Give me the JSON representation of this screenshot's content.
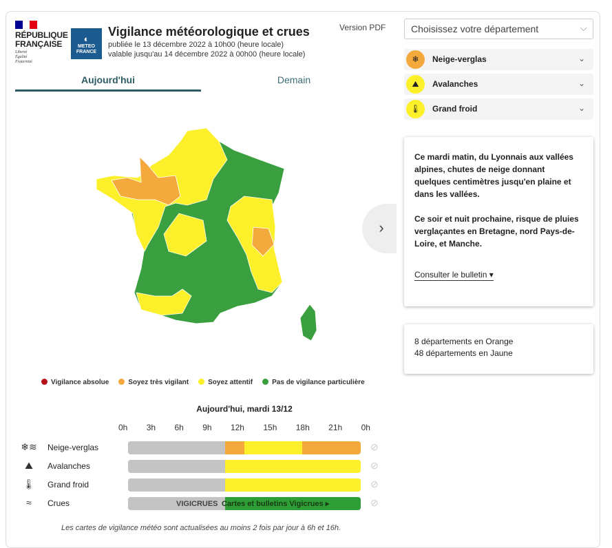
{
  "header": {
    "brand_lines": [
      "RÉPUBLIQUE",
      "FRANÇAISE"
    ],
    "motto": [
      "Liberté",
      "Égalité",
      "Fraternité"
    ],
    "logo_text": [
      "METEO",
      "FRANCE"
    ],
    "title": "Vigilance météorologique et crues",
    "published": "publiée le 13 décembre 2022 à 10h00 (heure locale)",
    "valid": "valable jusqu'au 14 décembre 2022 à 00h00 (heure locale)",
    "pdf": "Version PDF"
  },
  "tabs": [
    {
      "label": "Aujourd'hui",
      "active": true
    },
    {
      "label": "Demain",
      "active": false
    }
  ],
  "map": {
    "next_icon": "chevron-right-icon"
  },
  "legend": [
    {
      "label": "Vigilance absolue",
      "color": "#c8102e"
    },
    {
      "label": "Soyez très vigilant",
      "color": "#f4a93c"
    },
    {
      "label": "Soyez attentif",
      "color": "#fbf02a"
    },
    {
      "label": "Pas de vigilance particulière",
      "color": "#3aa03f"
    }
  ],
  "timeline": {
    "title": "Aujourd'hui, mardi 13/12",
    "hours": [
      "0h",
      "3h",
      "6h",
      "9h",
      "12h",
      "15h",
      "18h",
      "21h",
      "0h"
    ],
    "rows": [
      {
        "label": "Neige-verglas",
        "icon": "snow-ice-icon",
        "segments": [
          {
            "from": 0,
            "to": 10,
            "color": "#c4c4c4"
          },
          {
            "from": 10,
            "to": 12,
            "color": "#f4a93c"
          },
          {
            "from": 12,
            "to": 18,
            "color": "#fbf02a"
          },
          {
            "from": 18,
            "to": 24,
            "color": "#f4a93c"
          }
        ]
      },
      {
        "label": "Avalanches",
        "icon": "avalanche-icon",
        "segments": [
          {
            "from": 0,
            "to": 10,
            "color": "#c4c4c4"
          },
          {
            "from": 10,
            "to": 24,
            "color": "#fbf02a"
          }
        ]
      },
      {
        "label": "Grand froid",
        "icon": "thermometer-icon",
        "segments": [
          {
            "from": 0,
            "to": 10,
            "color": "#c4c4c4"
          },
          {
            "from": 10,
            "to": 24,
            "color": "#fbf02a"
          }
        ]
      },
      {
        "label": "Crues",
        "icon": "waves-icon",
        "segments": [
          {
            "from": 0,
            "to": 10,
            "color": "#c4c4c4"
          },
          {
            "from": 10,
            "to": 24,
            "color": "#2e9e36"
          }
        ],
        "vigicrues": "VIGICRUES",
        "link": "Cartes et bulletins Vigicrues ▸"
      }
    ],
    "note": "Les cartes de vigilance météo sont actualisées au moins 2 fois par jour à 6h et 16h."
  },
  "sidebar": {
    "select_placeholder": "Choisissez votre département",
    "hazards": [
      {
        "label": "Neige-verglas",
        "color": "#f4a93c",
        "icon": "snow-ice-icon"
      },
      {
        "label": "Avalanches",
        "color": "#fbf02a",
        "icon": "avalanche-icon"
      },
      {
        "label": "Grand froid",
        "color": "#fbf02a",
        "icon": "thermometer-icon"
      }
    ],
    "bulletin": {
      "p1": "Ce mardi matin, du Lyonnais aux vallées alpines, chutes de neige donnant quelques centimètres jusqu'en plaine et dans les vallées.",
      "p2": "Ce soir et nuit prochaine, risque de pluies verglaçantes en Bretagne, nord Pays-de-Loire, et Manche.",
      "cta": "Consulter le bulletin ▾"
    },
    "counts": [
      "8 départements en Orange",
      "48 départements en Jaune"
    ]
  }
}
